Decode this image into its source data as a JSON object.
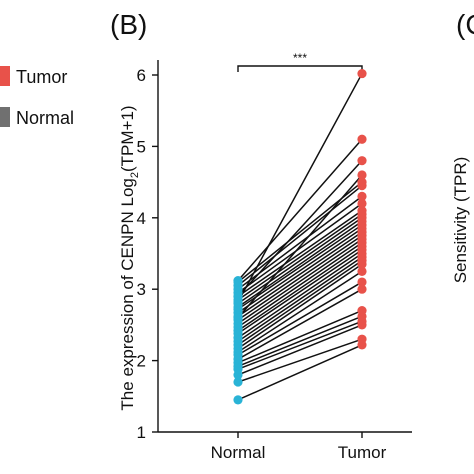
{
  "panel_label": "(B)",
  "next_panel_label": "(C",
  "legend_partial": [
    {
      "label": "Tumor",
      "color": "#e8524a"
    },
    {
      "label": "Normal",
      "color": "#707070"
    }
  ],
  "right_panel_ylabel": "Sensitivity (TPR)",
  "chart_data": {
    "type": "scatter",
    "subtype": "paired-dot",
    "ylabel_pre": "The expression of CENPN Log",
    "ylabel_sub": "2",
    "ylabel_post": "(TPM+1)",
    "ylim": [
      1,
      6.2
    ],
    "yticks": [
      "1",
      "2",
      "3",
      "4",
      "5",
      "6"
    ],
    "categories": [
      "Normal",
      "Tumor"
    ],
    "significance": "***",
    "grid": false,
    "colors": {
      "Normal": "#29b3d6",
      "Tumor": "#e8524a",
      "line": "#111111"
    },
    "pairs": [
      [
        1.45,
        2.22
      ],
      [
        1.7,
        2.3
      ],
      [
        1.8,
        2.5
      ],
      [
        1.88,
        2.55
      ],
      [
        1.92,
        2.62
      ],
      [
        1.97,
        2.7
      ],
      [
        2.02,
        3.0
      ],
      [
        2.08,
        3.1
      ],
      [
        2.12,
        3.25
      ],
      [
        2.17,
        3.35
      ],
      [
        2.22,
        3.4
      ],
      [
        2.27,
        3.45
      ],
      [
        2.32,
        3.5
      ],
      [
        2.38,
        3.55
      ],
      [
        2.42,
        3.6
      ],
      [
        2.47,
        3.65
      ],
      [
        2.52,
        3.7
      ],
      [
        2.57,
        3.75
      ],
      [
        2.62,
        3.8
      ],
      [
        2.67,
        3.85
      ],
      [
        2.72,
        3.9
      ],
      [
        2.75,
        3.95
      ],
      [
        2.8,
        4.0
      ],
      [
        2.85,
        4.05
      ],
      [
        2.9,
        4.1
      ],
      [
        2.95,
        4.2
      ],
      [
        3.0,
        4.3
      ],
      [
        3.05,
        4.45
      ],
      [
        3.1,
        4.5
      ],
      [
        2.6,
        4.6
      ],
      [
        2.9,
        4.8
      ],
      [
        3.12,
        5.1
      ],
      [
        2.82,
        6.02
      ]
    ]
  }
}
